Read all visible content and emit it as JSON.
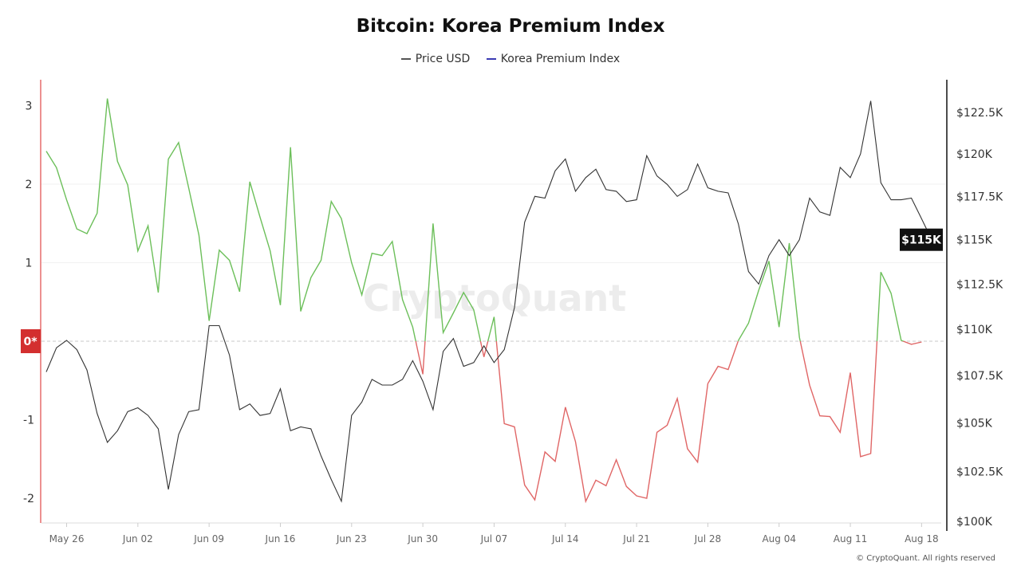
{
  "chart_data": {
    "type": "line",
    "title": "Bitcoin: Korea Premium Index",
    "legend": {
      "placement": "top-center",
      "entries": [
        {
          "name": "Price USD",
          "color": "#555555"
        },
        {
          "name": "Korea Premium Index",
          "color": "#3b3bb3"
        }
      ]
    },
    "x": [
      "May 24",
      "May 25",
      "May 26",
      "May 27",
      "May 28",
      "May 29",
      "May 30",
      "May 31",
      "Jun 01",
      "Jun 02",
      "Jun 03",
      "Jun 04",
      "Jun 05",
      "Jun 06",
      "Jun 07",
      "Jun 08",
      "Jun 09",
      "Jun 10",
      "Jun 11",
      "Jun 12",
      "Jun 13",
      "Jun 14",
      "Jun 15",
      "Jun 16",
      "Jun 17",
      "Jun 18",
      "Jun 19",
      "Jun 20",
      "Jun 21",
      "Jun 22",
      "Jun 23",
      "Jun 24",
      "Jun 25",
      "Jun 26",
      "Jun 27",
      "Jun 28",
      "Jun 29",
      "Jun 30",
      "Jul 01",
      "Jul 02",
      "Jul 03",
      "Jul 04",
      "Jul 05",
      "Jul 06",
      "Jul 07",
      "Jul 08",
      "Jul 09",
      "Jul 10",
      "Jul 11",
      "Jul 12",
      "Jul 13",
      "Jul 14",
      "Jul 15",
      "Jul 16",
      "Jul 17",
      "Jul 18",
      "Jul 19",
      "Jul 20",
      "Jul 21",
      "Jul 22",
      "Jul 23",
      "Jul 24",
      "Jul 25",
      "Jul 26",
      "Jul 27",
      "Jul 28",
      "Jul 29",
      "Jul 30",
      "Jul 31",
      "Aug 01",
      "Aug 02",
      "Aug 03",
      "Aug 04",
      "Aug 05",
      "Aug 06",
      "Aug 07",
      "Aug 08",
      "Aug 09",
      "Aug 10",
      "Aug 11",
      "Aug 12",
      "Aug 13",
      "Aug 14",
      "Aug 15",
      "Aug 16",
      "Aug 17",
      "Aug 18",
      "Aug 19"
    ],
    "x_ticks": [
      "May 26",
      "Jun 02",
      "Jun 09",
      "Jun 16",
      "Jun 23",
      "Jun 30",
      "Jul 07",
      "Jul 14",
      "Jul 21",
      "Jul 28",
      "Aug 04",
      "Aug 11",
      "Aug 18"
    ],
    "series": [
      {
        "name": "Korea Premium Index",
        "axis": "left",
        "color_positive": "#6cbf5a",
        "color_negative": "#e06666",
        "values": [
          2.42,
          2.21,
          1.8,
          1.43,
          1.37,
          1.63,
          3.09,
          2.29,
          1.99,
          1.15,
          1.47,
          0.62,
          2.32,
          2.53,
          1.95,
          1.35,
          0.26,
          1.16,
          1.03,
          0.63,
          2.03,
          1.58,
          1.15,
          0.46,
          2.47,
          0.38,
          0.81,
          1.03,
          1.78,
          1.56,
          1.0,
          0.59,
          1.12,
          1.09,
          1.27,
          0.53,
          0.18,
          -0.42,
          1.5,
          0.11,
          0.36,
          0.62,
          0.4,
          -0.2,
          0.31,
          -1.05,
          -1.09,
          -1.83,
          -2.02,
          -1.41,
          -1.53,
          -0.84,
          -1.28,
          -2.04,
          -1.77,
          -1.84,
          -1.51,
          -1.85,
          -1.97,
          -2.0,
          -1.16,
          -1.07,
          -0.73,
          -1.37,
          -1.54,
          -0.54,
          -0.32,
          -0.36,
          0.01,
          0.23,
          0.65,
          1.02,
          0.18,
          1.25,
          0.05,
          -0.56,
          -0.95,
          -0.96,
          -1.16,
          -0.4,
          -1.47,
          -1.43,
          0.88,
          0.61,
          0.01,
          -0.04,
          -0.01,
          null
        ]
      },
      {
        "name": "Price USD",
        "axis": "right",
        "color": "#333333",
        "values": [
          107700,
          109000,
          109400,
          108900,
          107800,
          105500,
          104000,
          104600,
          105600,
          105800,
          105400,
          104700,
          101600,
          104400,
          105600,
          105700,
          110200,
          110200,
          108600,
          105700,
          106000,
          105400,
          105500,
          106800,
          104600,
          104800,
          104700,
          103300,
          102100,
          101000,
          105400,
          106100,
          107300,
          107000,
          107000,
          107300,
          108300,
          107200,
          105700,
          108800,
          109500,
          108000,
          108200,
          109100,
          108200,
          108900,
          111200,
          116000,
          117500,
          117400,
          119000,
          119700,
          117800,
          118600,
          119100,
          117900,
          117800,
          117200,
          117300,
          119900,
          118700,
          118200,
          117500,
          117900,
          119400,
          118000,
          117800,
          117700,
          115900,
          113200,
          112500,
          114100,
          115000,
          114100,
          115000,
          117400,
          116600,
          116400,
          119200,
          118600,
          120000,
          123200,
          118300,
          117300,
          117300,
          117400,
          116200,
          115000
        ]
      }
    ],
    "y_left": {
      "ticks": [
        "3",
        "2",
        "1",
        "0*",
        "-1",
        "-2"
      ],
      "tick_values": [
        3,
        2,
        1,
        0,
        -1,
        -2
      ],
      "range": [
        -2.1,
        3.2
      ],
      "zero_label_color": "#d32f2f"
    },
    "y_right": {
      "scale": "log",
      "ticks": [
        "$122.5K",
        "$120K",
        "$117.5K",
        "$115K",
        "$112.5K",
        "$110K",
        "$107.5K",
        "$105K",
        "$102.5K",
        "$100K"
      ],
      "tick_values": [
        122500,
        120000,
        117500,
        115000,
        112500,
        110000,
        107500,
        105000,
        102500,
        100000
      ],
      "range": [
        100000,
        124500
      ]
    },
    "last_price_label": "$115K",
    "grid": true,
    "watermark": "CryptoQuant"
  },
  "footer": "© CryptoQuant. All rights reserved"
}
